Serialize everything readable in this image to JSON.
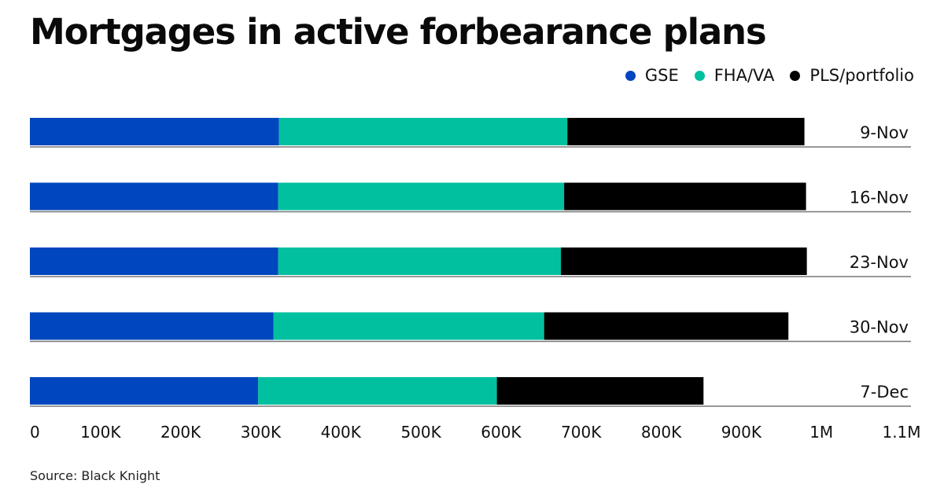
{
  "chart_data": {
    "type": "bar",
    "orientation": "horizontal",
    "stacked": true,
    "title": "Mortgages in active forbearance plans",
    "xlabel": "",
    "ylabel": "",
    "categories": [
      "9-Nov",
      "16-Nov",
      "23-Nov",
      "30-Nov",
      "7-Dec"
    ],
    "series": [
      {
        "name": "GSE",
        "color": "#0046be",
        "values": [
          311000,
          310000,
          310000,
          304000,
          285000
        ]
      },
      {
        "name": "FHA/VA",
        "color": "#00c0a0",
        "values": [
          360000,
          357000,
          353000,
          338000,
          298000
        ]
      },
      {
        "name": "PLS/portfolio",
        "color": "#000000",
        "values": [
          296000,
          302000,
          307000,
          305000,
          258000
        ]
      }
    ],
    "xlim": [
      0,
      1100000
    ],
    "xticks": [
      0,
      100000,
      200000,
      300000,
      400000,
      500000,
      600000,
      700000,
      800000,
      900000,
      1000000,
      1100000
    ],
    "xtick_labels": [
      "0",
      "100K",
      "200K",
      "300K",
      "400K",
      "500K",
      "600K",
      "700K",
      "800K",
      "900K",
      "1M",
      "1.1M"
    ],
    "legend_position": "top-right",
    "grid": false,
    "source": "Source: Black Knight"
  }
}
